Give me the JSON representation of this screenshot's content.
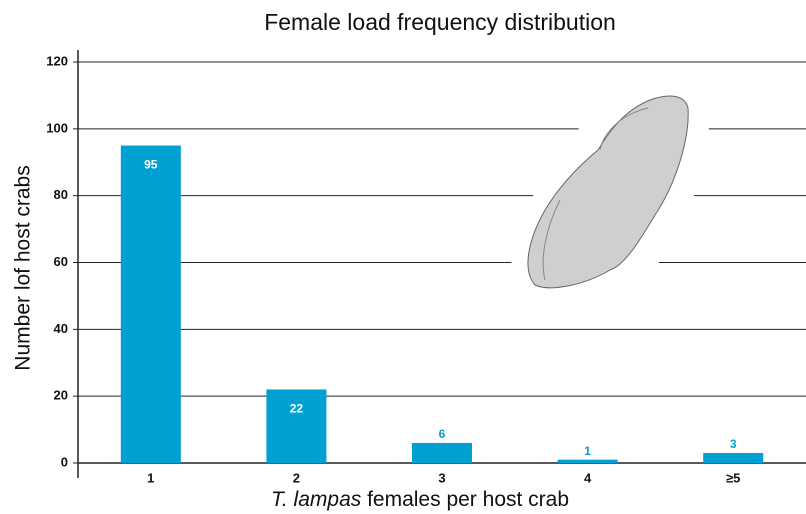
{
  "chart_data": {
    "type": "bar",
    "title": "Female load frequency distribution",
    "x_label_italic": "T. lampas",
    "x_label": " females per host crab",
    "y_label": "Number lof host crabs",
    "categories": [
      "1",
      "2",
      "3",
      "4",
      "≥5"
    ],
    "values": [
      95,
      22,
      6,
      1,
      3
    ],
    "color": "#00a0d2",
    "ylim": [
      0,
      120
    ],
    "yticks": [
      0,
      20,
      40,
      60,
      80,
      100,
      120
    ],
    "grid": true
  }
}
